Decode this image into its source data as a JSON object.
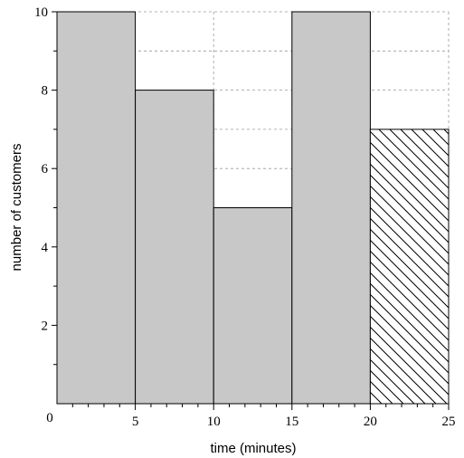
{
  "chart_data": {
    "type": "bar",
    "xlabel": "time (minutes)",
    "ylabel": "number of customers",
    "xlim": [
      0,
      25
    ],
    "ylim": [
      0,
      10
    ],
    "x_ticks": [
      "5",
      "10",
      "15",
      "20",
      "25"
    ],
    "y_ticks": [
      "2",
      "4",
      "6",
      "8",
      "10"
    ],
    "origin_label": "0",
    "grid": true,
    "bins": [
      {
        "start": 0,
        "end": 5,
        "value": 10,
        "fill": "solid"
      },
      {
        "start": 5,
        "end": 10,
        "value": 8,
        "fill": "solid"
      },
      {
        "start": 10,
        "end": 15,
        "value": 5,
        "fill": "solid"
      },
      {
        "start": 15,
        "end": 20,
        "value": 10,
        "fill": "solid"
      },
      {
        "start": 20,
        "end": 25,
        "value": 7,
        "fill": "hatched"
      }
    ],
    "colors": {
      "bar_fill": "#c8c8c8",
      "bar_edge": "#000000",
      "grid": "#999999",
      "hatch": "#000000"
    }
  }
}
